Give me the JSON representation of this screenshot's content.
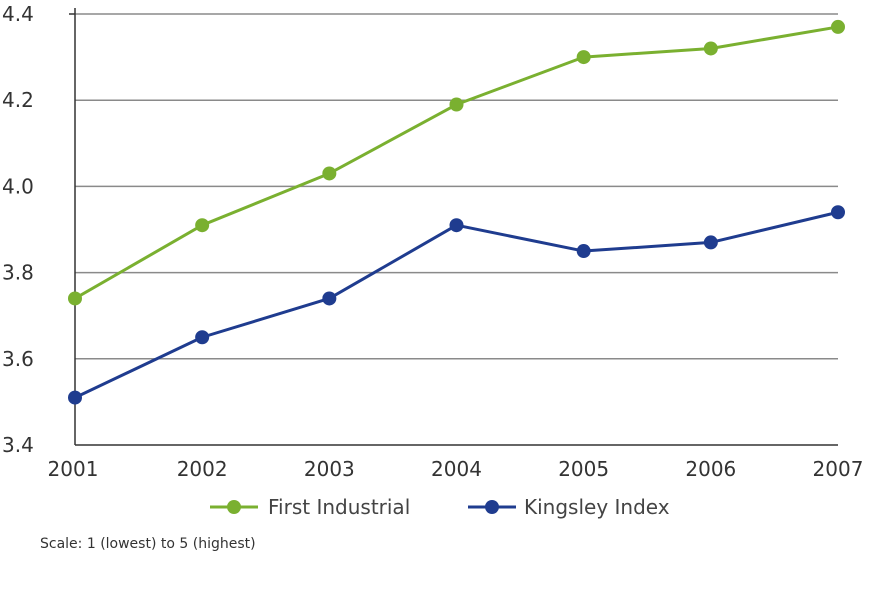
{
  "chart_data": {
    "type": "line",
    "categories": [
      "2001",
      "2002",
      "2003",
      "2004",
      "2005",
      "2006",
      "2007"
    ],
    "series": [
      {
        "name": "First Industrial",
        "color": "#7ab030",
        "values": [
          3.74,
          3.91,
          4.03,
          4.19,
          4.3,
          4.32,
          4.37
        ]
      },
      {
        "name": "Kingsley Index",
        "color": "#1f3c8f",
        "values": [
          3.51,
          3.65,
          3.74,
          3.91,
          3.85,
          3.87,
          3.94
        ]
      }
    ],
    "ylim": [
      3.4,
      4.4
    ],
    "yticks": [
      "3.4",
      "3.6",
      "3.8",
      "4.0",
      "4.2",
      "4.4"
    ],
    "grid": true,
    "legend_position": "bottom"
  },
  "footnote": "Scale: 1 (lowest) to 5 (highest)"
}
